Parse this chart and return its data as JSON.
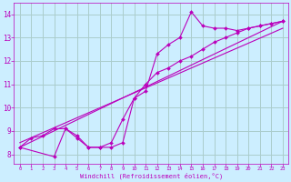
{
  "bg_color": "#cceeff",
  "grid_color": "#aacccc",
  "line_color": "#bb00bb",
  "marker": "D",
  "marker_size": 2.0,
  "xlabel": "Windchill (Refroidissement éolien,°C)",
  "ylim": [
    7.6,
    14.5
  ],
  "xlim": [
    -0.5,
    23.5
  ],
  "yticks": [
    8,
    9,
    10,
    11,
    12,
    13,
    14
  ],
  "xticks": [
    0,
    1,
    2,
    3,
    4,
    5,
    6,
    7,
    8,
    9,
    10,
    11,
    12,
    13,
    14,
    15,
    16,
    17,
    18,
    19,
    20,
    21,
    22,
    23
  ],
  "series": [
    {
      "x": [
        0,
        1,
        2,
        3,
        4,
        5,
        6,
        7,
        8,
        9,
        10,
        11,
        12,
        13,
        14,
        15,
        16,
        17,
        18,
        19,
        20,
        21,
        22,
        23
      ],
      "y": [
        8.3,
        8.7,
        8.8,
        9.1,
        9.1,
        8.8,
        8.3,
        8.3,
        8.3,
        8.5,
        10.4,
        10.7,
        12.3,
        12.7,
        13.0,
        14.1,
        13.5,
        13.4,
        13.4,
        13.3,
        13.4,
        13.5,
        13.6,
        13.7
      ],
      "has_marker": true
    },
    {
      "x": [
        0,
        3,
        4,
        5,
        6,
        7,
        8,
        9,
        10,
        11,
        12,
        13,
        14,
        15,
        16,
        17,
        18,
        19,
        20,
        21,
        22,
        23
      ],
      "y": [
        8.3,
        7.9,
        9.1,
        8.7,
        8.3,
        8.3,
        8.5,
        9.5,
        10.4,
        11.0,
        11.5,
        11.7,
        12.0,
        12.2,
        12.5,
        12.8,
        13.0,
        13.2,
        13.4,
        13.5,
        13.6,
        13.7
      ],
      "has_marker": true
    },
    {
      "x": [
        0,
        23
      ],
      "y": [
        8.3,
        13.7
      ],
      "has_marker": false
    },
    {
      "x": [
        0,
        23
      ],
      "y": [
        8.5,
        13.4
      ],
      "has_marker": false
    }
  ]
}
